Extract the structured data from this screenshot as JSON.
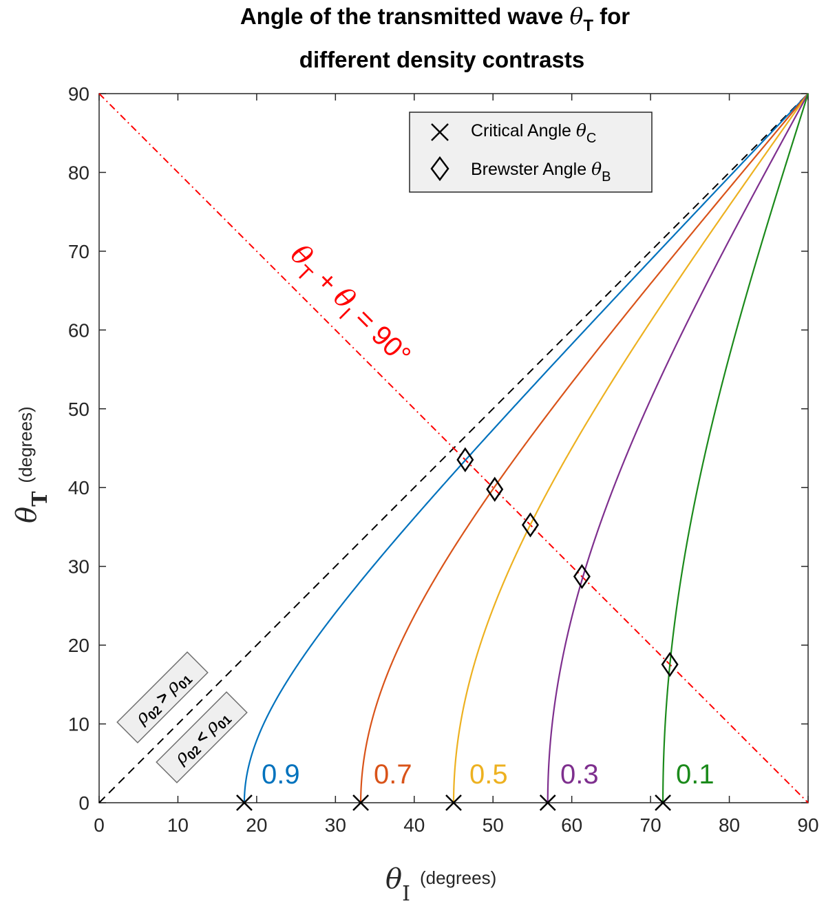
{
  "chart_data": {
    "type": "line",
    "title": "Angle of the transmitted wave θT for different density contrasts",
    "title_line1": "Angle of the transmitted wave ",
    "title_greek": "θ",
    "title_sub": "T",
    "title_suffix": " for",
    "title_line2": "different density contrasts",
    "xlabel": {
      "symbol": "θ",
      "sub": "I",
      "unit": "(degrees)"
    },
    "ylabel": {
      "symbol": "θ",
      "sub": "T",
      "unit": "(degrees)"
    },
    "xlim": [
      0,
      90
    ],
    "ylim": [
      0,
      90
    ],
    "x_ticks": [
      "0",
      "10",
      "20",
      "30",
      "40",
      "50",
      "60",
      "70",
      "80",
      "90"
    ],
    "y_ticks": [
      "0",
      "10",
      "20",
      "30",
      "40",
      "50",
      "60",
      "70",
      "80",
      "90"
    ],
    "series": [
      {
        "name": "0.9",
        "color": "#0072BD",
        "critical_angle": 18.43,
        "brewster": [
          46.47,
          43.53
        ]
      },
      {
        "name": "0.7",
        "color": "#D95319",
        "critical_angle": 33.21,
        "brewster": [
          50.22,
          39.78
        ]
      },
      {
        "name": "0.5",
        "color": "#EDB120",
        "critical_angle": 45.0,
        "brewster": [
          54.74,
          35.26
        ]
      },
      {
        "name": "0.3",
        "color": "#7E2F8E",
        "critical_angle": 56.95,
        "brewster": [
          61.29,
          28.71
        ]
      },
      {
        "name": "0.1",
        "color": "#1B8A1B",
        "critical_angle": 71.57,
        "brewster": [
          72.45,
          17.55
        ]
      }
    ],
    "reference_lines": [
      {
        "name": "diagonal θT = θI",
        "color": "#000000",
        "style": "dashed"
      },
      {
        "name": "θT + θI = 90°",
        "color": "#ff0000",
        "style": "dash-dot"
      }
    ],
    "legend": [
      {
        "marker": "x",
        "label": "Critical Angle ",
        "greek": "θ",
        "sub": "C"
      },
      {
        "marker": "diamond",
        "label": "Brewster Angle ",
        "greek": "θ",
        "sub": "B"
      }
    ],
    "legend_position": "top-right",
    "annotations": {
      "equation": {
        "greek1": "θ",
        "sub1": "T",
        "plus": " + ",
        "greek2": "θ",
        "sub2": "I",
        "rest": " = 90°"
      },
      "upper_box": {
        "rho": "ρ",
        "sub1": "02",
        "op": " > ",
        "sub2": "01"
      },
      "lower_box": {
        "rho": "ρ",
        "sub1": "02",
        "op": " < ",
        "sub2": "01"
      }
    }
  }
}
